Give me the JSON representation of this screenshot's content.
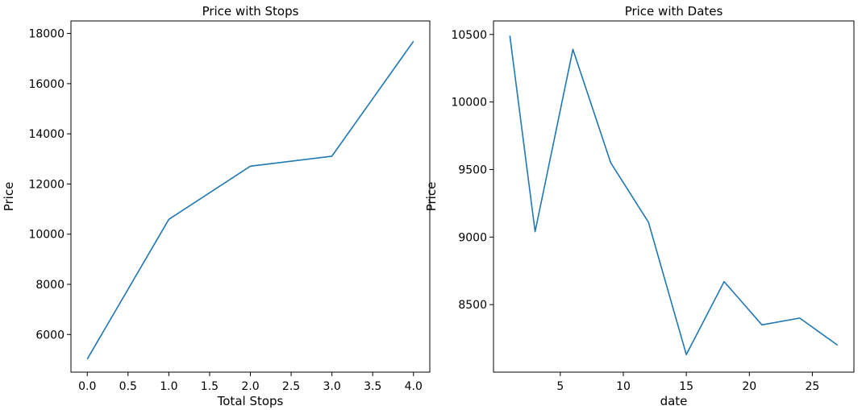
{
  "chart_data": [
    {
      "type": "line",
      "title": "Price with Stops",
      "xlabel": "Total Stops",
      "ylabel": "Price",
      "xlim": [
        -0.2,
        4.2
      ],
      "ylim": [
        4500,
        18500
      ],
      "xticks": [
        0.0,
        0.5,
        1.0,
        1.5,
        2.0,
        2.5,
        3.0,
        3.5,
        4.0
      ],
      "xtick_labels": [
        "0.0",
        "0.5",
        "1.0",
        "1.5",
        "2.0",
        "2.5",
        "3.0",
        "3.5",
        "4.0"
      ],
      "yticks": [
        6000,
        8000,
        10000,
        12000,
        14000,
        16000,
        18000
      ],
      "ytick_labels": [
        "6000",
        "8000",
        "10000",
        "12000",
        "14000",
        "16000",
        "18000"
      ],
      "grid": false,
      "color": "#1f77b4",
      "x": [
        0,
        1,
        2,
        3,
        4
      ],
      "y": [
        5020,
        10590,
        12710,
        13110,
        17690
      ]
    },
    {
      "type": "line",
      "title": "Price with Dates",
      "xlabel": "date",
      "ylabel": "Price",
      "xlim": [
        -0.3,
        28.3
      ],
      "ylim": [
        8000,
        10600
      ],
      "xticks": [
        5,
        10,
        15,
        20,
        25
      ],
      "xtick_labels": [
        "5",
        "10",
        "15",
        "20",
        "25"
      ],
      "yticks": [
        8500,
        9000,
        9500,
        10000,
        10500
      ],
      "ytick_labels": [
        "8500",
        "9000",
        "9500",
        "10000",
        "10500"
      ],
      "grid": false,
      "color": "#1f77b4",
      "x": [
        1,
        3,
        6,
        9,
        12,
        15,
        18,
        21,
        24,
        27
      ],
      "y": [
        10490,
        9040,
        10390,
        9550,
        9110,
        8130,
        8670,
        8350,
        8400,
        8200
      ]
    }
  ]
}
